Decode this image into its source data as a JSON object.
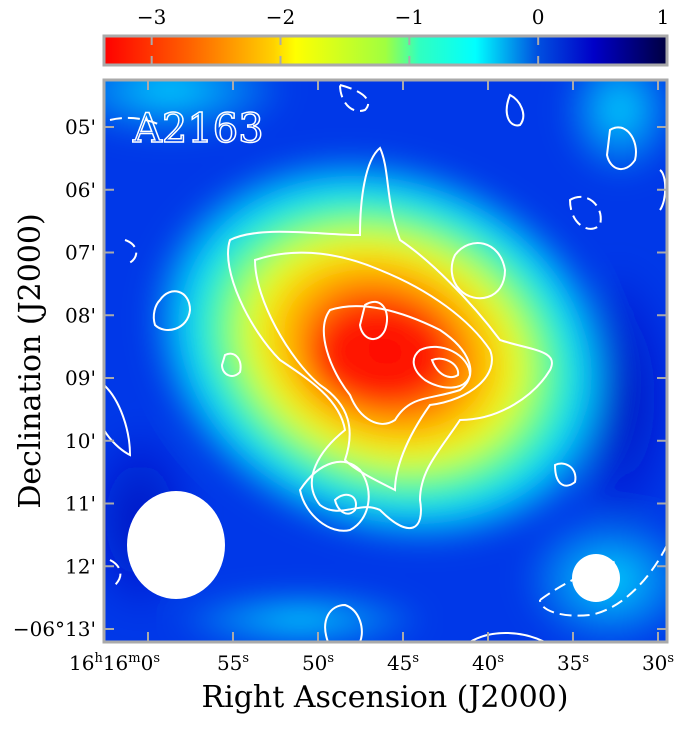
{
  "chart_data": {
    "type": "heatmap",
    "title": "A2163",
    "xlabel": "Right Ascension (J2000)",
    "ylabel": "Declination (J2000)",
    "xticks": [
      {
        "h": "16",
        "m": "16",
        "s": "0"
      },
      {
        "s": "55"
      },
      {
        "s": "50"
      },
      {
        "s": "45"
      },
      {
        "s": "40"
      },
      {
        "s": "35"
      },
      {
        "s": "30"
      }
    ],
    "yticks": [
      "05'",
      "06'",
      "07'",
      "08'",
      "09'",
      "10'",
      "11'",
      "12'",
      "−06°13'"
    ],
    "colorbar": {
      "ticks": [
        "−3",
        "−2",
        "−1",
        "0",
        "1"
      ],
      "tick_values": [
        -3,
        -2,
        -1,
        0,
        1
      ],
      "range": [
        -3.37,
        1
      ],
      "colormap": [
        "#ff0000",
        "#ff8000",
        "#ffff00",
        "#a0ff40",
        "#20ffd0",
        "#00ffff",
        "#0050e0",
        "#0000c8",
        "#000040"
      ]
    },
    "map_background": "#0038e8",
    "contour_color": "#ffffff",
    "beams": [
      "large beam lower-left (white ellipse)",
      "small beam lower-right (white circle)"
    ]
  }
}
